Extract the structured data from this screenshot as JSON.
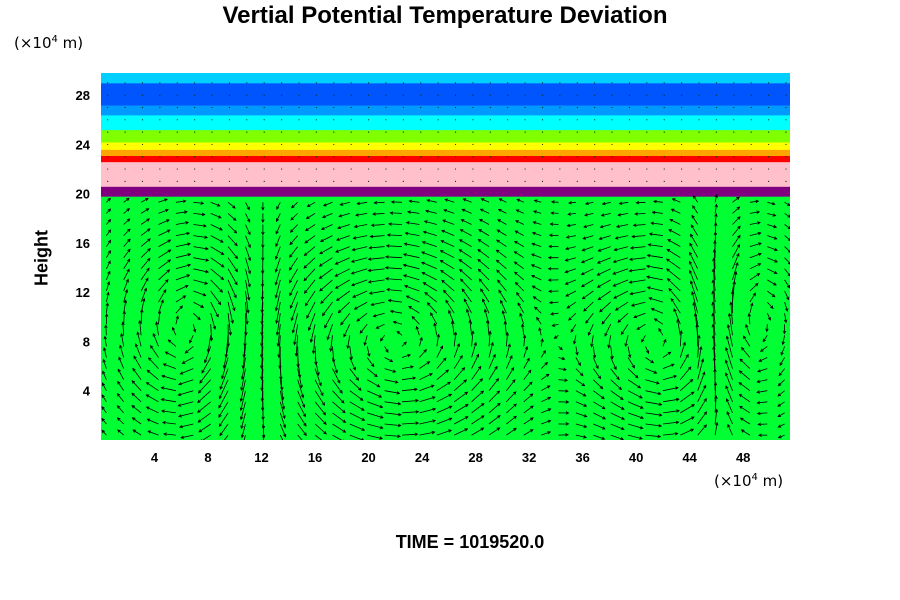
{
  "chart_data": {
    "type": "heatmap",
    "title": "Vertial Potential Temperature Deviation",
    "ylabel": "Height",
    "x_unit": {
      "prefix": "(×10",
      "exp": "4",
      "suffix": " m)"
    },
    "y_unit": {
      "prefix": "(×10",
      "exp": "4",
      "suffix": " m)"
    },
    "footer": "TIME = 1019520.0",
    "xlim": [
      0,
      51.5
    ],
    "ylim": [
      0,
      29.8
    ],
    "xticks": [
      4,
      8,
      12,
      16,
      20,
      24,
      28,
      32,
      36,
      40,
      44,
      48
    ],
    "yticks": [
      4,
      8,
      12,
      16,
      20,
      24,
      28
    ],
    "field_layers": [
      {
        "y0": 0,
        "y1": 19.8,
        "color": "#00ff33"
      },
      {
        "y0": 19.8,
        "y1": 20.6,
        "color": "#800080"
      },
      {
        "y0": 20.6,
        "y1": 22.6,
        "color": "#ffc0cb"
      },
      {
        "y0": 22.6,
        "y1": 23.1,
        "color": "#ff0000"
      },
      {
        "y0": 23.1,
        "y1": 23.6,
        "color": "#ffa500"
      },
      {
        "y0": 23.6,
        "y1": 24.2,
        "color": "#ffff00"
      },
      {
        "y0": 24.2,
        "y1": 25.2,
        "color": "#80ff00"
      },
      {
        "y0": 25.2,
        "y1": 26.4,
        "color": "#00ffff"
      },
      {
        "y0": 26.4,
        "y1": 27.2,
        "color": "#0099ff"
      },
      {
        "y0": 27.2,
        "y1": 29.0,
        "color": "#0055ff"
      },
      {
        "y0": 29.0,
        "y1": 29.8,
        "color": "#00cfff"
      }
    ],
    "circulation_cells": [
      {
        "center": [
          22,
          8
        ],
        "radius_x": 9,
        "radius_y": 7.5,
        "direction": "ccw"
      },
      {
        "center": [
          7,
          9
        ],
        "radius_x": 4.5,
        "radius_y": 7,
        "direction": "cw"
      },
      {
        "center": [
          42,
          8
        ],
        "radius_x": 6,
        "radius_y": 7,
        "direction": "ccw"
      },
      {
        "center": [
          48,
          9
        ],
        "radius_x": 3,
        "radius_y": 7,
        "direction": "cw"
      }
    ],
    "grid": false
  }
}
